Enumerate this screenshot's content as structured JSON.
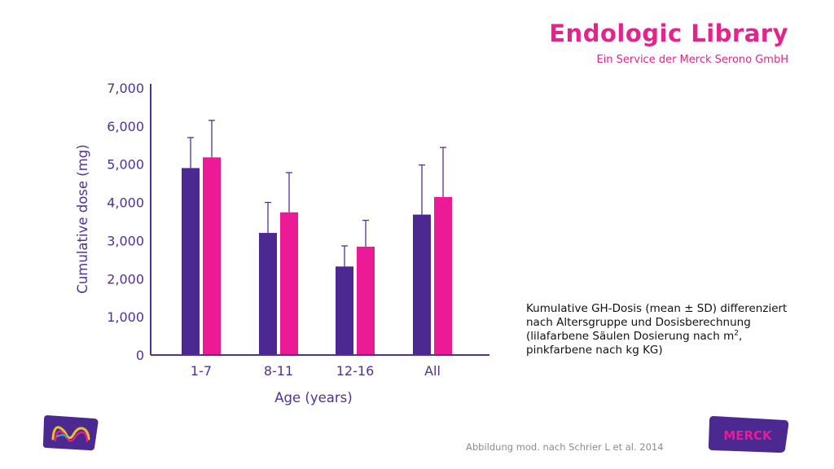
{
  "header": {
    "brand_title": "Endologic Library",
    "brand_subtitle": "Ein Service der Merck Serono GmbH"
  },
  "caption": {
    "line1": "Kumulative GH-Dosis (mean ± SD) differenziert",
    "line2": "nach Altersgruppe und Dosisberechnung",
    "line3_prefix": "(lilafarbene Säulen Dosierung nach m",
    "line3_sup": "2",
    "line3_suffix": ",",
    "line4": "pinkfarbene nach kg KG)"
  },
  "source": "Abbildung mod. nach Schrier L et al. 2014",
  "logos": {
    "left": "merck-m-logo-icon",
    "right_text": "MERCK"
  },
  "colors": {
    "purple": "#4b2990",
    "pink": "#ec1a95",
    "axis_text": "#503291",
    "brand": "#e3248d",
    "error_bar": "#503291"
  },
  "chart_data": {
    "type": "bar",
    "categories": [
      "1-7",
      "8-11",
      "12-16",
      "All"
    ],
    "series": [
      {
        "values": [
          4900,
          3200,
          2320,
          3680
        ],
        "sd_upper": [
          5700,
          4000,
          2860,
          4980
        ],
        "color": "#4b2990"
      },
      {
        "values": [
          5180,
          3740,
          2840,
          4140
        ],
        "sd_upper": [
          6150,
          4780,
          3530,
          5440
        ],
        "color": "#ec1a95"
      }
    ],
    "title": "",
    "xlabel": "Age (years)",
    "ylabel": "Cumulative dose (mg)",
    "ylim": [
      0,
      7000
    ],
    "yticks": [
      "0",
      "1,000",
      "2,000",
      "3,000",
      "4,000",
      "5,000",
      "6,000",
      "7,000"
    ],
    "ytick_values": [
      0,
      1000,
      2000,
      3000,
      4000,
      5000,
      6000,
      7000
    ],
    "grid": false,
    "legend": "none"
  }
}
